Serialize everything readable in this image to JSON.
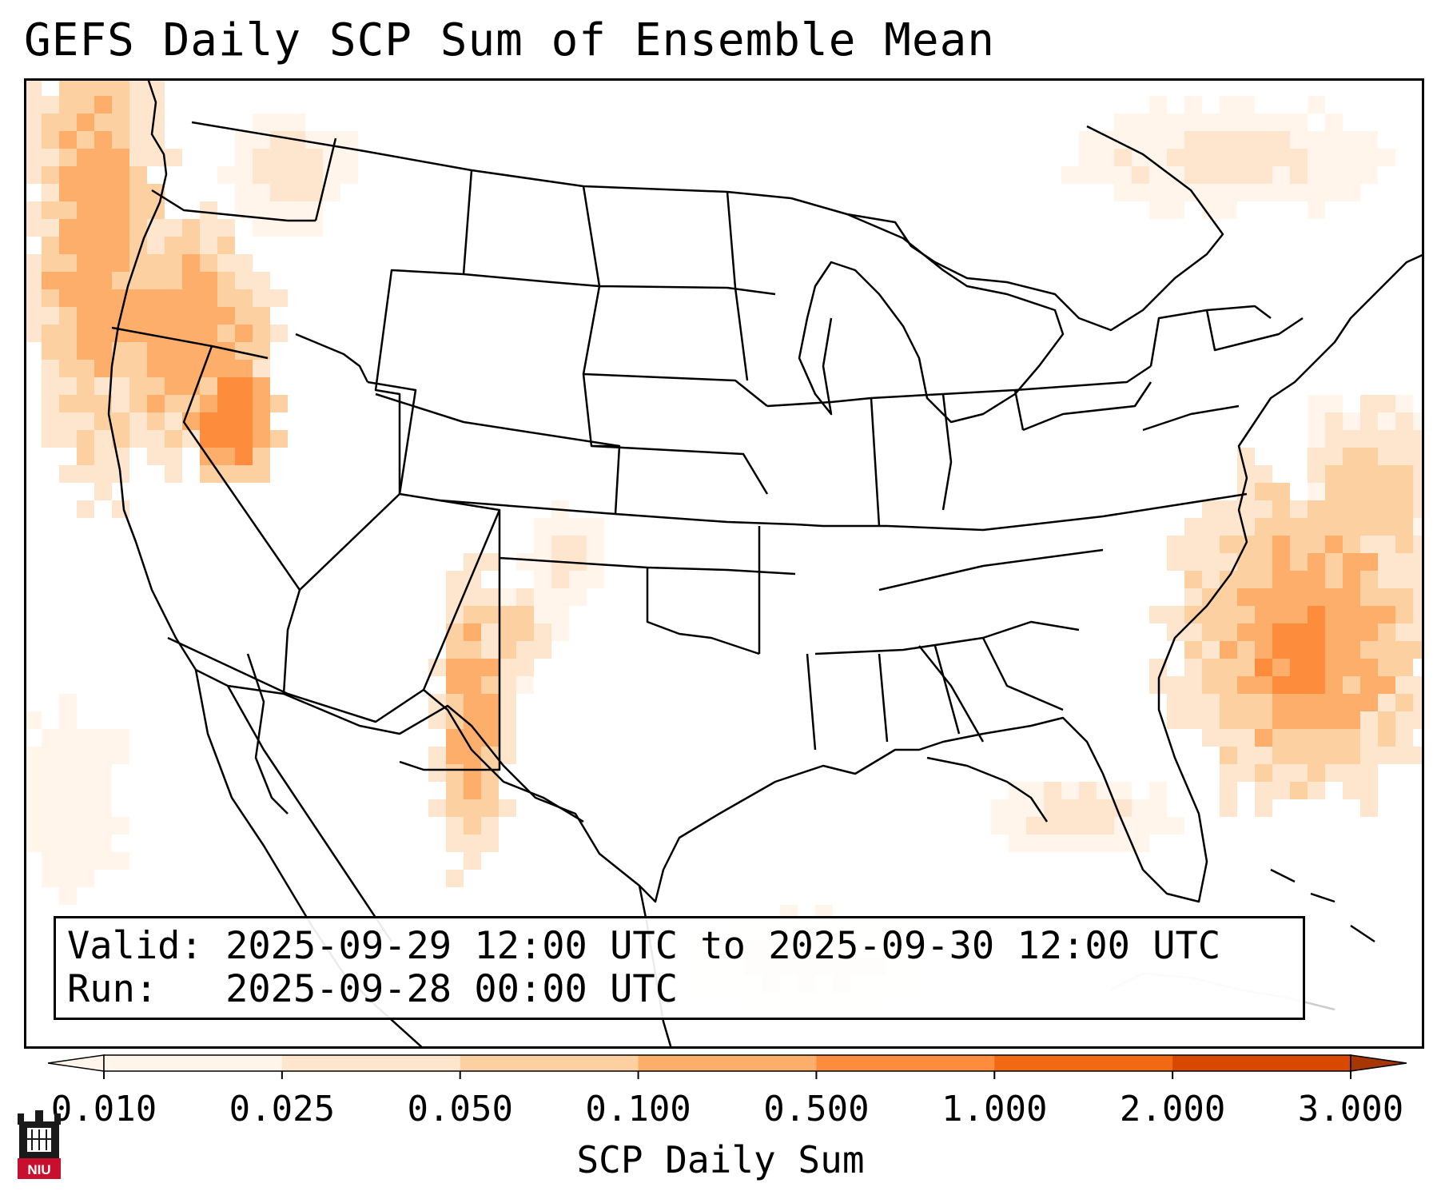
{
  "title": "GEFS Daily SCP Sum of Ensemble Mean",
  "info": {
    "valid_label": "Valid:",
    "valid_text": "2025-09-29 12:00 UTC to 2025-09-30 12:00 UTC",
    "run_label": "Run:",
    "run_text": "2025-09-28 00:00 UTC"
  },
  "colorbar": {
    "label": "SCP Daily Sum",
    "ticks": [
      "0.010",
      "0.025",
      "0.050",
      "0.100",
      "0.500",
      "1.000",
      "2.000",
      "3.000"
    ],
    "colors": [
      "#fff5eb",
      "#fee6ce",
      "#fdd0a2",
      "#fdae6b",
      "#fd8d3c",
      "#f16913",
      "#d94801",
      "#a63603"
    ],
    "extend": "both"
  },
  "colors": {
    "border": "#000000",
    "background": "#ffffff"
  },
  "logo": {
    "text": "NIU",
    "icon": "niu-castle-logo-icon"
  }
}
